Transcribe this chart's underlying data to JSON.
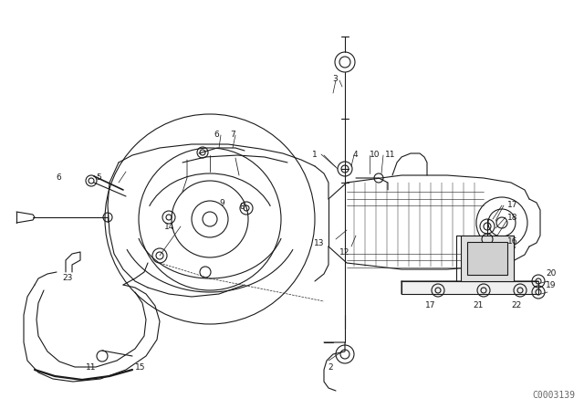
{
  "background_color": "#ffffff",
  "line_color": "#1a1a1a",
  "fig_width": 6.4,
  "fig_height": 4.48,
  "dpi": 100,
  "watermark": "C0003139",
  "watermark_fontsize": 7
}
